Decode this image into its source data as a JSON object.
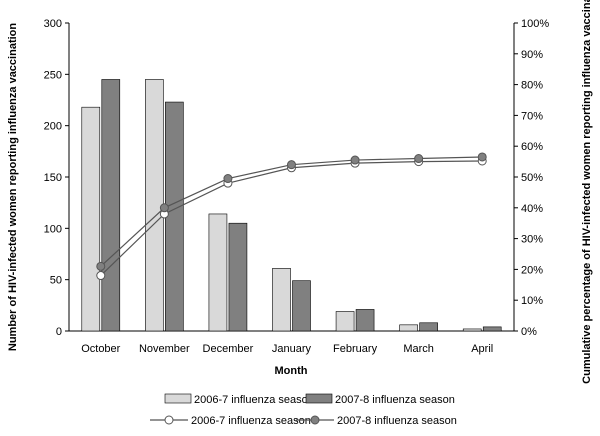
{
  "chart_data": {
    "type": "bar",
    "categories": [
      "October",
      "November",
      "December",
      "January",
      "February",
      "March",
      "April"
    ],
    "xlabel": "Month",
    "ylabel": "Number of HIV-infected women reporting influenza vaccination",
    "ylabel_right": "Cumulative percentage of HIV-infected women reporting influenza vaccination",
    "ylim": [
      0,
      300
    ],
    "yticks": [
      0,
      50,
      100,
      150,
      200,
      250,
      300
    ],
    "ylim_right": [
      0,
      100
    ],
    "yticks_right": [
      "0%",
      "10%",
      "20%",
      "30%",
      "40%",
      "50%",
      "60%",
      "70%",
      "80%",
      "90%",
      "100%"
    ],
    "grid": false,
    "legend_position": "bottom",
    "bar_series": [
      {
        "name": "2006-7 influenza season",
        "color": "#d9d9d9",
        "values": [
          218,
          245,
          114,
          61,
          19,
          6,
          2
        ]
      },
      {
        "name": "2007-8 influenza season",
        "color": "#808080",
        "values": [
          245,
          223,
          105,
          49,
          21,
          8,
          4
        ]
      }
    ],
    "line_series": [
      {
        "name": "2006-7 influenza season",
        "color": "#ffffff",
        "values": [
          18,
          38,
          48,
          53,
          54.5,
          55,
          55.2
        ]
      },
      {
        "name": "2007-8 influenza season",
        "color": "#808080",
        "values": [
          21,
          40,
          49.5,
          54,
          55.5,
          56,
          56.5
        ]
      }
    ]
  }
}
